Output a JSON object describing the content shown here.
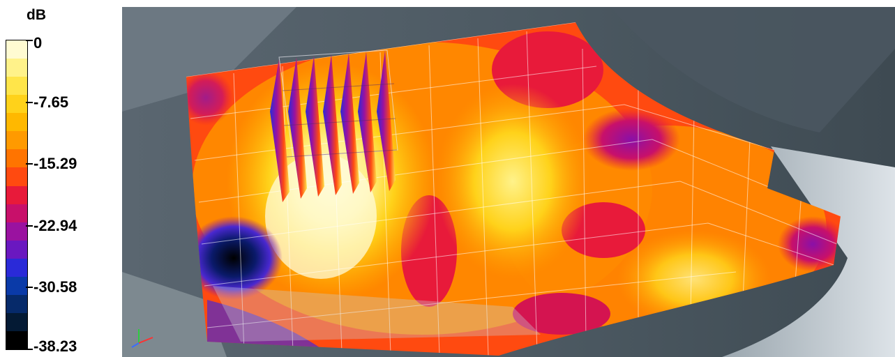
{
  "legend": {
    "title": "dB",
    "ticks": [
      {
        "label": "0",
        "value": 0
      },
      {
        "label": "-7.65",
        "value": -7.65
      },
      {
        "label": "-15.29",
        "value": -15.29
      },
      {
        "label": "-22.94",
        "value": -22.94
      },
      {
        "label": "-30.58",
        "value": -30.58
      },
      {
        "label": "-38.23",
        "value": -38.23
      }
    ],
    "range": [
      -38.23,
      0
    ],
    "color_bands": [
      "#fffbd2",
      "#fff28a",
      "#ffe54a",
      "#ffd21a",
      "#ffb800",
      "#ff9a00",
      "#ff7400",
      "#ff4a10",
      "#e81a3a",
      "#c8106a",
      "#9a12a0",
      "#6a18c0",
      "#2a2ad8",
      "#0a3aa8",
      "#062a6a",
      "#041a34",
      "#000000"
    ]
  },
  "viewport": {
    "background_colors": [
      "#4f5c66",
      "#6f7c86",
      "#c9d0d6"
    ],
    "surface_description_colors": {
      "hot": "#fff6b0",
      "warm": "#ffc41a",
      "mid": "#ff8a00",
      "cool": "#ff3a14",
      "cold": "#d41450",
      "deep": "#9a18a8",
      "blue": "#2a2ad8",
      "black": "#000000"
    },
    "axis_gizmo": "axis-triad-icon"
  }
}
